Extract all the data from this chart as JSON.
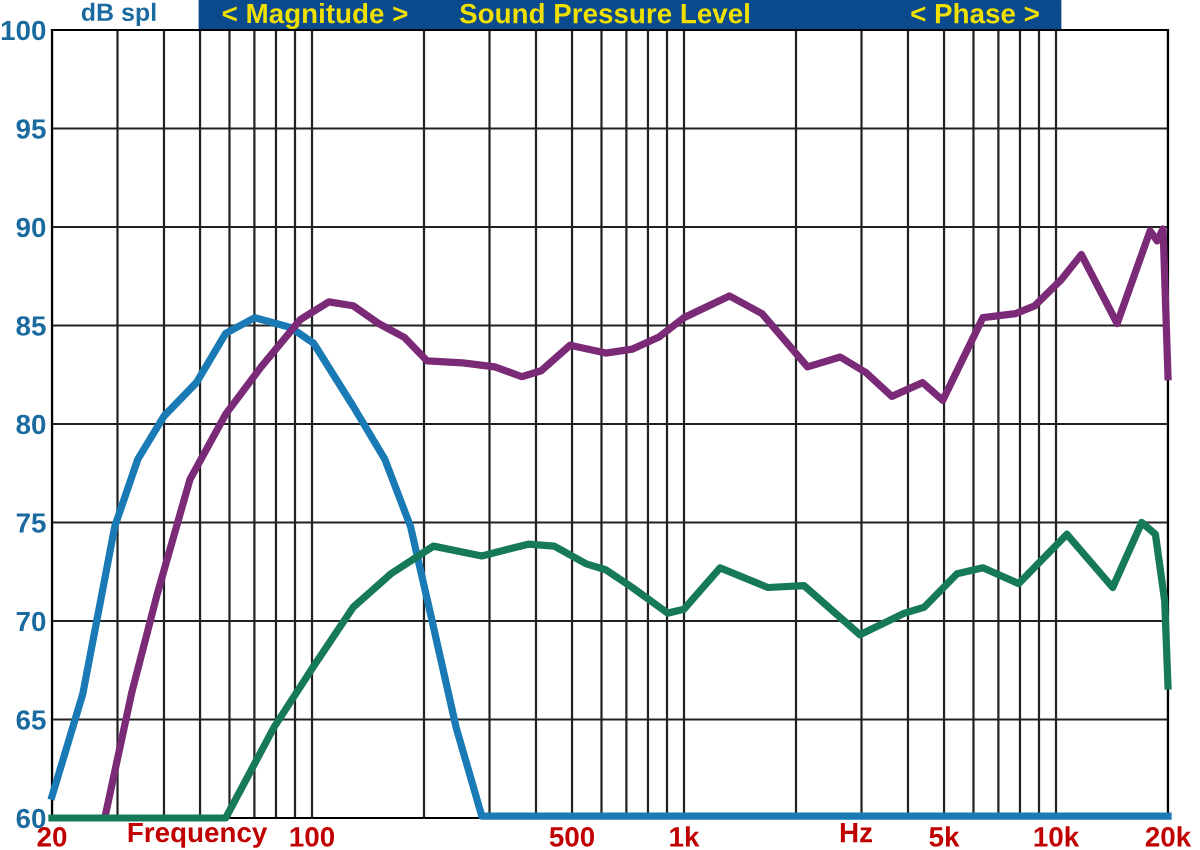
{
  "chart_data": {
    "type": "line",
    "title": "Sound Pressure Level",
    "annotations": [
      "< Magnitude >",
      "< Phase >",
      "Hz"
    ],
    "xlabel": "Frequency",
    "ylabel": "dB spl",
    "log": "x",
    "xlim": [
      20,
      20000
    ],
    "ylim": [
      60,
      100
    ],
    "xticks": [
      20,
      {
        "value": 30,
        "label": null
      },
      {
        "value": 40,
        "label": null
      },
      {
        "value": 50,
        "label": null
      },
      {
        "value": 60,
        "label": null
      },
      {
        "value": 70,
        "label": null
      },
      {
        "value": 80,
        "label": null
      },
      {
        "value": 90,
        "label": null
      },
      100,
      {
        "value": 200,
        "label": null
      },
      {
        "value": 300,
        "label": null
      },
      {
        "value": 400,
        "label": null
      },
      500,
      {
        "value": 600,
        "label": null
      },
      {
        "value": 700,
        "label": null
      },
      {
        "value": 800,
        "label": null
      },
      {
        "value": 900,
        "label": null
      },
      {
        "value": 1000,
        "label": "1k"
      },
      {
        "value": 2000,
        "label": null
      },
      {
        "value": 3000,
        "label": null
      },
      {
        "value": 4000,
        "label": null
      },
      {
        "value": 5000,
        "label": "5k"
      },
      {
        "value": 6000,
        "label": null
      },
      {
        "value": 7000,
        "label": null
      },
      {
        "value": 8000,
        "label": null
      },
      {
        "value": 9000,
        "label": null
      },
      {
        "value": 10000,
        "label": "10k"
      },
      {
        "value": 20000,
        "label": "20k"
      }
    ],
    "yticks": [
      60,
      65,
      70,
      75,
      80,
      85,
      90,
      95,
      100
    ],
    "grid": true,
    "marker": "none",
    "line_style": "solid",
    "series": [
      {
        "color": "#1a7ab5",
        "x": [
          20,
          24.2,
          29.5,
          34,
          40,
          48.9,
          58.6,
          70.2,
          87.6,
          101,
          129,
          157,
          184,
          208,
          244,
          286,
          20000
        ],
        "values": [
          61.1,
          66.3,
          74.8,
          78.2,
          80.4,
          82.1,
          84.6,
          85.4,
          84.9,
          84.1,
          80.9,
          78.2,
          74.8,
          70.4,
          64.6,
          60.1,
          60.1
        ]
      },
      {
        "color": "#7b2a78",
        "x": [
          27.8,
          32.7,
          38.4,
          47,
          58.6,
          73,
          93,
          111,
          129,
          151,
          177,
          204,
          254,
          310,
          366,
          413,
          494,
          616,
          726,
          854,
          1000,
          1324,
          1620,
          2148,
          2630,
          3090,
          3620,
          4380,
          4960,
          6360,
          7780,
          8760,
          10300,
          11700,
          14600,
          17900,
          18700,
          19400,
          20000
        ],
        "values": [
          60.1,
          66.3,
          71.4,
          77.2,
          80.5,
          82.9,
          85.3,
          86.2,
          86.0,
          85.1,
          84.4,
          83.2,
          83.1,
          82.9,
          82.4,
          82.7,
          84.0,
          83.6,
          83.8,
          84.4,
          85.4,
          86.5,
          85.6,
          82.9,
          83.4,
          82.6,
          81.4,
          82.1,
          81.2,
          85.4,
          85.6,
          86.0,
          87.3,
          88.6,
          85.1,
          89.8,
          89.3,
          89.9,
          82.4
        ]
      },
      {
        "color": "#16795a",
        "x": [
          20,
          58.6,
          79,
          101,
          129,
          163,
          212,
          286,
          381,
          448,
          546,
          616,
          726,
          904,
          1000,
          1250,
          1680,
          2100,
          2970,
          3920,
          4420,
          5420,
          6360,
          7940,
          10700,
          14200,
          17000,
          18500,
          19600,
          20000
        ],
        "values": [
          60,
          60,
          64.6,
          67.7,
          70.7,
          72.4,
          73.8,
          73.3,
          73.9,
          73.8,
          72.9,
          72.6,
          71.7,
          70.4,
          70.6,
          72.7,
          71.7,
          71.8,
          69.3,
          70.4,
          70.7,
          72.4,
          72.7,
          71.9,
          74.4,
          71.7,
          75.0,
          74.4,
          71.0,
          66.7
        ]
      }
    ]
  }
}
